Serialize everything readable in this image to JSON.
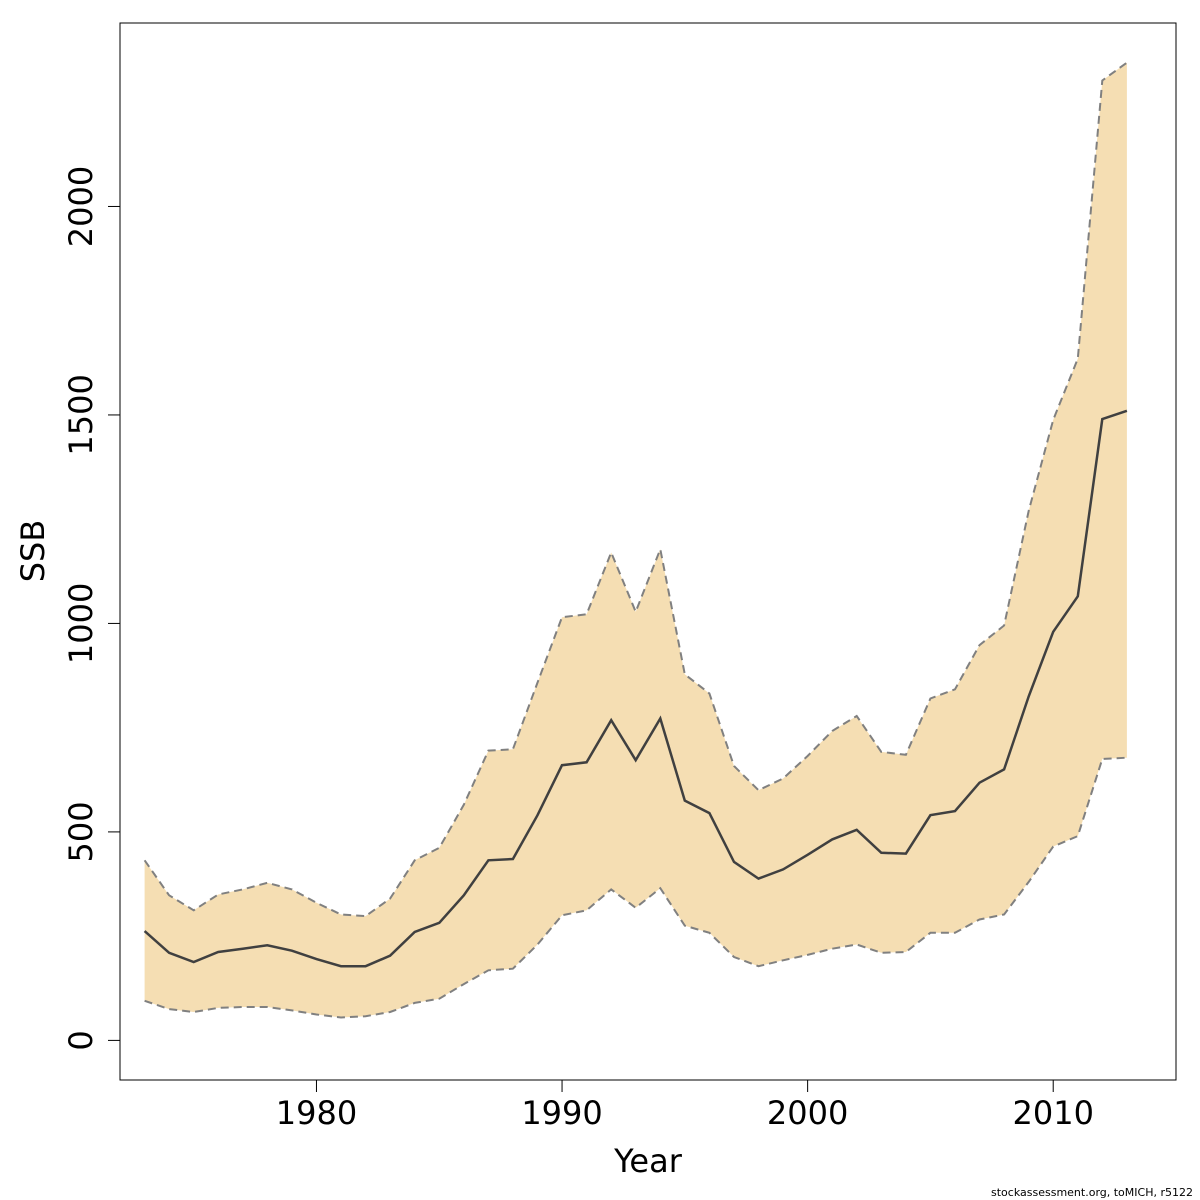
{
  "chart_data": {
    "type": "area",
    "xlabel": "Year",
    "ylabel": "SSB",
    "xlim": [
      1972,
      2015
    ],
    "ylim": [
      -95,
      2440
    ],
    "xticks": [
      1980,
      1990,
      2000,
      2010
    ],
    "yticks": [
      0,
      500,
      1000,
      1500,
      2000
    ],
    "grid": false,
    "colors": {
      "band": "#f5deb3",
      "median": "#404040",
      "bounds": "#808080"
    },
    "x": [
      1973,
      1974,
      1975,
      1976,
      1977,
      1978,
      1979,
      1980,
      1981,
      1982,
      1983,
      1984,
      1985,
      1986,
      1987,
      1988,
      1989,
      1990,
      1991,
      1992,
      1993,
      1994,
      1995,
      1996,
      1997,
      1998,
      1999,
      2000,
      2001,
      2002,
      2003,
      2004,
      2005,
      2006,
      2007,
      2008,
      2009,
      2010,
      2011,
      2012,
      2013
    ],
    "series": [
      {
        "role": "lower",
        "values": [
          95,
          75,
          68,
          78,
          80,
          80,
          72,
          62,
          55,
          58,
          68,
          90,
          100,
          135,
          168,
          172,
          230,
          300,
          312,
          362,
          318,
          365,
          275,
          258,
          200,
          178,
          192,
          205,
          220,
          230,
          210,
          212,
          258,
          258,
          290,
          302,
          380,
          465,
          490,
          675,
          678
        ]
      },
      {
        "role": "median",
        "values": [
          262,
          210,
          188,
          212,
          220,
          228,
          215,
          195,
          178,
          178,
          203,
          260,
          282,
          348,
          432,
          435,
          540,
          660,
          667,
          768,
          672,
          772,
          575,
          545,
          428,
          388,
          410,
          445,
          482,
          505,
          450,
          448,
          540,
          550,
          618,
          650,
          825,
          980,
          1065,
          1490,
          1510
        ]
      },
      {
        "role": "upper",
        "values": [
          432,
          348,
          312,
          350,
          362,
          378,
          362,
          330,
          302,
          298,
          340,
          432,
          462,
          565,
          695,
          698,
          858,
          1015,
          1022,
          1170,
          1028,
          1178,
          878,
          832,
          658,
          600,
          628,
          682,
          742,
          778,
          692,
          685,
          820,
          842,
          948,
          995,
          1270,
          1488,
          1635,
          2302,
          2345
        ]
      }
    ]
  },
  "credit": "stockassessment.org, toMICH, r5122"
}
